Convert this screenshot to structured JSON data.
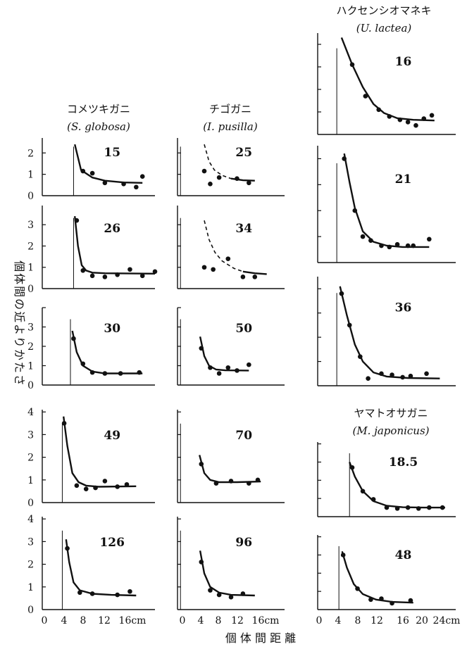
{
  "figure": {
    "y_axis_label": "個体間の近よりかたさ",
    "x_axis_label": "個 体 間 距 離",
    "x_ticks_left": [
      "0",
      "4",
      "8",
      "12",
      "16cm"
    ],
    "x_ticks_right": [
      "0",
      "4",
      "8",
      "12",
      "16",
      "20",
      "24cm"
    ]
  },
  "columns": [
    {
      "title_jp": "コメツキガニ",
      "title_latin": "(S. globosa)"
    },
    {
      "title_jp": "チゴガニ",
      "title_latin": "(I. pusilla)"
    },
    {
      "title_jp": "ハクセンシオマネキ",
      "title_latin": "(U. lactea)"
    },
    {
      "title_jp": "ヤマトオサガニ",
      "title_latin": "(M. japonicus)"
    }
  ],
  "chart_data": [
    {
      "type": "scatter",
      "species": "S. globosa",
      "label": "15",
      "xlim": [
        0,
        18
      ],
      "ylim": [
        0,
        2.7
      ],
      "y_ticks": [
        "0",
        "1",
        "2"
      ],
      "points": [
        [
          6.5,
          1.15
        ],
        [
          8,
          1.05
        ],
        [
          10,
          0.6
        ],
        [
          13,
          0.55
        ],
        [
          15,
          0.4
        ],
        [
          16,
          0.9
        ]
      ],
      "curve": [
        [
          5.2,
          2.4
        ],
        [
          6.2,
          1.2
        ],
        [
          8,
          0.85
        ],
        [
          10,
          0.7
        ],
        [
          13,
          0.62
        ],
        [
          16,
          0.6
        ]
      ]
    },
    {
      "type": "scatter",
      "species": "S. globosa",
      "label": "26",
      "xlim": [
        0,
        18
      ],
      "ylim": [
        0,
        3.9
      ],
      "y_ticks": [
        "0",
        "1",
        "2",
        "3"
      ],
      "points": [
        [
          5.5,
          3.2
        ],
        [
          6.5,
          0.85
        ],
        [
          8,
          0.6
        ],
        [
          10,
          0.55
        ],
        [
          12,
          0.65
        ],
        [
          14,
          0.9
        ],
        [
          16,
          0.6
        ],
        [
          18,
          0.8
        ]
      ],
      "curve": [
        [
          5.2,
          3.4
        ],
        [
          5.7,
          2.0
        ],
        [
          6.3,
          1.1
        ],
        [
          7,
          0.85
        ],
        [
          8,
          0.75
        ],
        [
          10,
          0.72
        ],
        [
          18,
          0.7
        ]
      ]
    },
    {
      "type": "scatter",
      "species": "S. globosa",
      "label": "30",
      "xlim": [
        0,
        18
      ],
      "ylim": [
        0,
        4
      ],
      "y_ticks": [
        "0",
        "1",
        "2",
        "3"
      ],
      "points": [
        [
          5,
          2.4
        ],
        [
          6.5,
          1.1
        ],
        [
          8,
          0.65
        ],
        [
          10,
          0.6
        ],
        [
          12.5,
          0.6
        ],
        [
          15.5,
          0.65
        ]
      ],
      "curve": [
        [
          4.8,
          2.8
        ],
        [
          5.5,
          1.7
        ],
        [
          6.5,
          1.0
        ],
        [
          8,
          0.7
        ],
        [
          10,
          0.6
        ],
        [
          16,
          0.6
        ]
      ]
    },
    {
      "type": "scatter",
      "species": "S. globosa",
      "label": "49",
      "xlim": [
        0,
        18
      ],
      "ylim": [
        0,
        4.1
      ],
      "y_ticks": [
        "0",
        "1",
        "2",
        "3",
        "4"
      ],
      "points": [
        [
          3.5,
          3.5
        ],
        [
          5.5,
          0.75
        ],
        [
          7,
          0.6
        ],
        [
          8.5,
          0.65
        ],
        [
          10,
          0.95
        ],
        [
          12,
          0.7
        ],
        [
          13.5,
          0.8
        ]
      ],
      "curve": [
        [
          3.4,
          3.8
        ],
        [
          4,
          2.5
        ],
        [
          4.8,
          1.3
        ],
        [
          5.8,
          0.9
        ],
        [
          7,
          0.75
        ],
        [
          9,
          0.7
        ],
        [
          15,
          0.72
        ]
      ]
    },
    {
      "type": "scatter",
      "species": "S. globosa",
      "label": "126",
      "xlim": [
        0,
        18
      ],
      "ylim": [
        0,
        4.1
      ],
      "y_ticks": [
        "0",
        "1",
        "2",
        "3",
        "4"
      ],
      "points": [
        [
          4,
          2.7
        ],
        [
          6,
          0.75
        ],
        [
          8,
          0.7
        ],
        [
          12,
          0.65
        ],
        [
          14,
          0.8
        ]
      ],
      "curve": [
        [
          3.8,
          3.1
        ],
        [
          4.3,
          2.1
        ],
        [
          5,
          1.2
        ],
        [
          6,
          0.85
        ],
        [
          8,
          0.7
        ],
        [
          11,
          0.65
        ],
        [
          15,
          0.62
        ]
      ]
    },
    {
      "type": "scatter",
      "species": "I. pusilla",
      "label": "25",
      "xlim": [
        0,
        18
      ],
      "ylim": [
        0,
        2.7
      ],
      "y_ticks": [],
      "points": [
        [
          4.5,
          1.15
        ],
        [
          5.5,
          0.55
        ],
        [
          7,
          0.85
        ],
        [
          10,
          0.8
        ],
        [
          12,
          0.6
        ]
      ],
      "curve_dashed": [
        [
          4.5,
          2.4
        ],
        [
          5.3,
          1.6
        ],
        [
          6.2,
          1.2
        ],
        [
          7.5,
          0.95
        ],
        [
          9,
          0.8
        ]
      ],
      "curve": [
        [
          9,
          0.8
        ],
        [
          11,
          0.72
        ],
        [
          13,
          0.7
        ]
      ]
    },
    {
      "type": "scatter",
      "species": "I. pusilla",
      "label": "34",
      "xlim": [
        0,
        18
      ],
      "ylim": [
        0,
        3.9
      ],
      "y_ticks": [],
      "points": [
        [
          4.5,
          1.0
        ],
        [
          6,
          0.9
        ],
        [
          8.5,
          1.4
        ],
        [
          11,
          0.55
        ],
        [
          13,
          0.55
        ]
      ],
      "curve_dashed": [
        [
          4.5,
          3.2
        ],
        [
          5.3,
          2.3
        ],
        [
          6.3,
          1.7
        ],
        [
          7.5,
          1.3
        ],
        [
          9.5,
          0.95
        ],
        [
          11,
          0.8
        ]
      ],
      "curve": [
        [
          11,
          0.8
        ],
        [
          13,
          0.72
        ],
        [
          15,
          0.68
        ]
      ]
    },
    {
      "type": "scatter",
      "species": "I. pusilla",
      "label": "50",
      "xlim": [
        0,
        18
      ],
      "ylim": [
        0,
        4
      ],
      "y_ticks": [],
      "points": [
        [
          4,
          1.9
        ],
        [
          5.5,
          0.9
        ],
        [
          7,
          0.6
        ],
        [
          8.5,
          0.9
        ],
        [
          10,
          0.75
        ],
        [
          12,
          1.05
        ]
      ],
      "curve": [
        [
          3.8,
          2.5
        ],
        [
          4.5,
          1.5
        ],
        [
          5.3,
          1.0
        ],
        [
          6.5,
          0.8
        ],
        [
          8,
          0.76
        ],
        [
          12,
          0.75
        ]
      ]
    },
    {
      "type": "scatter",
      "species": "I. pusilla",
      "label": "70",
      "xlim": [
        0,
        18
      ],
      "ylim": [
        0,
        4.1
      ],
      "y_ticks": [],
      "points": [
        [
          4,
          1.7
        ],
        [
          6.5,
          0.85
        ],
        [
          9,
          0.95
        ],
        [
          12,
          0.85
        ],
        [
          13.5,
          1.0
        ]
      ],
      "curve": [
        [
          3.7,
          2.1
        ],
        [
          4.5,
          1.3
        ],
        [
          5.5,
          1.0
        ],
        [
          7,
          0.9
        ],
        [
          10,
          0.9
        ],
        [
          14,
          0.93
        ]
      ]
    },
    {
      "type": "scatter",
      "species": "I. pusilla",
      "label": "96",
      "xlim": [
        0,
        18
      ],
      "ylim": [
        0,
        4.1
      ],
      "y_ticks": [],
      "points": [
        [
          4,
          2.1
        ],
        [
          5.5,
          0.85
        ],
        [
          7,
          0.65
        ],
        [
          9,
          0.55
        ],
        [
          11,
          0.7
        ]
      ],
      "curve": [
        [
          3.8,
          2.6
        ],
        [
          4.5,
          1.6
        ],
        [
          5.5,
          1.0
        ],
        [
          7,
          0.75
        ],
        [
          9,
          0.65
        ],
        [
          13,
          0.62
        ]
      ]
    },
    {
      "type": "scatter",
      "species": "U. lactea",
      "label": "16",
      "xlim": [
        0,
        26
      ],
      "ylim": [
        0,
        4.5
      ],
      "y_ticks": [],
      "points": [
        [
          6.5,
          3.1
        ],
        [
          9,
          1.7
        ],
        [
          11.5,
          1.1
        ],
        [
          13.5,
          0.8
        ],
        [
          15.5,
          0.65
        ],
        [
          17,
          0.55
        ],
        [
          18.5,
          0.4
        ],
        [
          20,
          0.7
        ],
        [
          21.5,
          0.85
        ]
      ],
      "curve": [
        [
          4.5,
          4.3
        ],
        [
          6.5,
          3.1
        ],
        [
          8.5,
          2.1
        ],
        [
          10.5,
          1.35
        ],
        [
          12.5,
          0.95
        ],
        [
          15,
          0.72
        ],
        [
          18,
          0.65
        ],
        [
          22,
          0.62
        ]
      ]
    },
    {
      "type": "scatter",
      "species": "U. lactea",
      "label": "21",
      "xlim": [
        0,
        26
      ],
      "ylim": [
        0,
        4.5
      ],
      "y_ticks": [],
      "points": [
        [
          5,
          4.0
        ],
        [
          7,
          2.0
        ],
        [
          8.5,
          1.0
        ],
        [
          10,
          0.85
        ],
        [
          12,
          0.65
        ],
        [
          13.5,
          0.6
        ],
        [
          15,
          0.7
        ],
        [
          17,
          0.65
        ],
        [
          18,
          0.65
        ],
        [
          21,
          0.9
        ]
      ],
      "curve": [
        [
          5,
          4.2
        ],
        [
          6,
          3.1
        ],
        [
          7,
          2.1
        ],
        [
          8.5,
          1.2
        ],
        [
          10.5,
          0.8
        ],
        [
          13,
          0.65
        ],
        [
          16,
          0.6
        ],
        [
          21,
          0.6
        ]
      ]
    },
    {
      "type": "scatter",
      "species": "U. lactea",
      "label": "36",
      "xlim": [
        0,
        26
      ],
      "ylim": [
        0,
        4.5
      ],
      "y_ticks": [],
      "points": [
        [
          4.5,
          3.8
        ],
        [
          6,
          2.5
        ],
        [
          8,
          1.2
        ],
        [
          9.5,
          0.3
        ],
        [
          12,
          0.5
        ],
        [
          14,
          0.45
        ],
        [
          16,
          0.35
        ],
        [
          17.5,
          0.4
        ],
        [
          20.5,
          0.5
        ]
      ],
      "curve": [
        [
          4.2,
          4.1
        ],
        [
          5.5,
          2.9
        ],
        [
          7,
          1.7
        ],
        [
          8.5,
          1.0
        ],
        [
          10.5,
          0.55
        ],
        [
          13,
          0.38
        ],
        [
          17,
          0.32
        ],
        [
          23,
          0.3
        ]
      ]
    },
    {
      "type": "scatter",
      "species": "M. japonicus",
      "label": "18.5",
      "xlim": [
        0,
        26
      ],
      "ylim": [
        0,
        4.1
      ],
      "y_ticks": [],
      "points": [
        [
          6.5,
          2.7
        ],
        [
          8.5,
          1.4
        ],
        [
          10.5,
          0.95
        ],
        [
          13,
          0.5
        ],
        [
          15,
          0.45
        ],
        [
          17,
          0.5
        ],
        [
          19,
          0.45
        ],
        [
          21,
          0.5
        ],
        [
          23.5,
          0.5
        ]
      ],
      "curve": [
        [
          6,
          3.0
        ],
        [
          7,
          2.2
        ],
        [
          8.5,
          1.4
        ],
        [
          10.5,
          0.85
        ],
        [
          13,
          0.6
        ],
        [
          16,
          0.52
        ],
        [
          20,
          0.5
        ],
        [
          24,
          0.5
        ]
      ]
    },
    {
      "type": "scatter",
      "species": "M. japonicus",
      "label": "48",
      "xlim": [
        0,
        26
      ],
      "ylim": [
        0,
        4.1
      ],
      "y_ticks": [],
      "points": [
        [
          4.8,
          3.0
        ],
        [
          7.5,
          1.15
        ],
        [
          10,
          0.55
        ],
        [
          12,
          0.6
        ],
        [
          14,
          0.35
        ],
        [
          17.5,
          0.5
        ]
      ],
      "curve": [
        [
          4.6,
          3.2
        ],
        [
          5.5,
          2.3
        ],
        [
          6.8,
          1.4
        ],
        [
          8.5,
          0.85
        ],
        [
          11,
          0.55
        ],
        [
          14,
          0.42
        ],
        [
          18,
          0.38
        ]
      ]
    }
  ]
}
